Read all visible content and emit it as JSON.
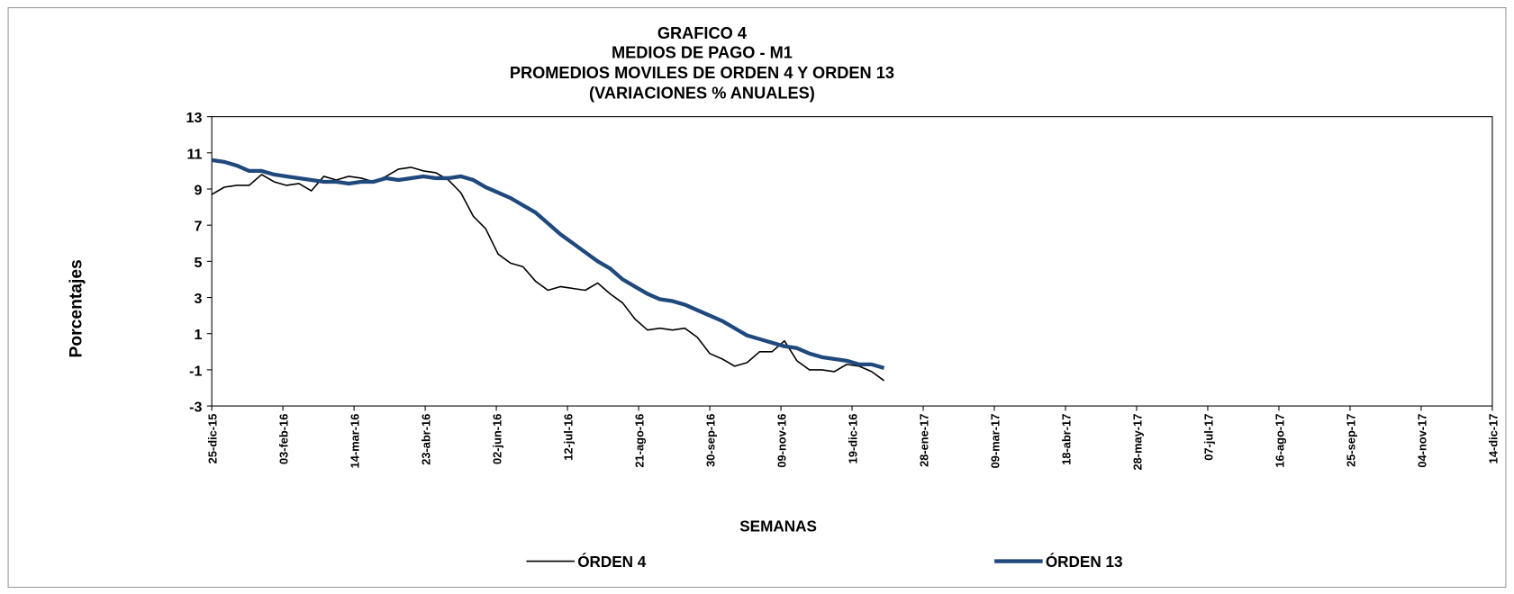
{
  "chart_data": {
    "type": "line",
    "title": [
      "GRAFICO 4",
      "MEDIOS DE PAGO - M1",
      "PROMEDIOS MOVILES DE ORDEN 4 Y ORDEN 13",
      "(VARIACIONES % ANUALES)"
    ],
    "xlabel": "SEMANAS",
    "ylabel": "Porcentajes",
    "x": [
      "2015-12-25",
      "2016-01-01",
      "2016-01-08",
      "2016-01-15",
      "2016-01-22",
      "2016-01-29",
      "2016-02-05",
      "2016-02-12",
      "2016-02-19",
      "2016-02-26",
      "2016-03-04",
      "2016-03-11",
      "2016-03-18",
      "2016-03-25",
      "2016-04-01",
      "2016-04-08",
      "2016-04-15",
      "2016-04-22",
      "2016-04-29",
      "2016-05-06",
      "2016-05-13",
      "2016-05-20",
      "2016-05-27",
      "2016-06-03",
      "2016-06-10",
      "2016-06-17",
      "2016-06-24",
      "2016-07-01",
      "2016-07-08",
      "2016-07-15",
      "2016-07-22",
      "2016-07-29",
      "2016-08-05",
      "2016-08-12",
      "2016-08-19",
      "2016-08-26",
      "2016-09-02",
      "2016-09-09",
      "2016-09-16",
      "2016-09-23",
      "2016-09-30",
      "2016-10-07",
      "2016-10-14",
      "2016-10-21",
      "2016-10-28",
      "2016-11-04",
      "2016-11-11",
      "2016-11-18",
      "2016-11-25",
      "2016-12-02",
      "2016-12-09",
      "2016-12-16",
      "2016-12-23",
      "2016-12-30",
      "2017-01-06"
    ],
    "series": [
      {
        "name": "ÓRDEN 4",
        "color": "#000000",
        "values": [
          8.7,
          9.1,
          9.2,
          9.2,
          9.8,
          9.4,
          9.2,
          9.3,
          8.9,
          9.7,
          9.5,
          9.7,
          9.6,
          9.4,
          9.7,
          10.1,
          10.2,
          10.0,
          9.9,
          9.5,
          8.8,
          7.5,
          6.8,
          5.4,
          4.9,
          4.7,
          3.9,
          3.4,
          3.6,
          3.5,
          3.4,
          3.8,
          3.2,
          2.7,
          1.8,
          1.2,
          1.3,
          1.2,
          1.3,
          0.8,
          -0.1,
          -0.4,
          -0.8,
          -0.6,
          0.0,
          0.0,
          0.6,
          -0.5,
          -1.0,
          -1.0,
          -1.1,
          -0.7,
          -0.8,
          -1.1,
          -1.6
        ]
      },
      {
        "name": "ÓRDEN 13",
        "color": "#1f497d",
        "values": [
          10.6,
          10.5,
          10.3,
          10.0,
          10.0,
          9.8,
          9.7,
          9.6,
          9.5,
          9.4,
          9.4,
          9.3,
          9.4,
          9.4,
          9.6,
          9.5,
          9.6,
          9.7,
          9.6,
          9.6,
          9.7,
          9.5,
          9.1,
          8.8,
          8.5,
          8.1,
          7.7,
          7.1,
          6.5,
          6.0,
          5.5,
          5.0,
          4.6,
          4.0,
          3.6,
          3.2,
          2.9,
          2.8,
          2.6,
          2.3,
          2.0,
          1.7,
          1.3,
          0.9,
          0.7,
          0.5,
          0.3,
          0.2,
          -0.1,
          -0.3,
          -0.4,
          -0.5,
          -0.7,
          -0.7,
          -0.9
        ]
      }
    ],
    "xlim": [
      "2015-12-25",
      "2017-12-14"
    ],
    "xticks": [
      {
        "value": "2015-12-25",
        "label": "25-dic-15"
      },
      {
        "value": "2016-02-03",
        "label": "03-feb-16"
      },
      {
        "value": "2016-03-14",
        "label": "14-mar-16"
      },
      {
        "value": "2016-04-23",
        "label": "23-abr-16"
      },
      {
        "value": "2016-06-02",
        "label": "02-jun-16"
      },
      {
        "value": "2016-07-12",
        "label": "12-jul-16"
      },
      {
        "value": "2016-08-21",
        "label": "21-ago-16"
      },
      {
        "value": "2016-09-30",
        "label": "30-sep-16"
      },
      {
        "value": "2016-11-09",
        "label": "09-nov-16"
      },
      {
        "value": "2016-12-19",
        "label": "19-dic-16"
      },
      {
        "value": "2017-01-28",
        "label": "28-ene-17"
      },
      {
        "value": "2017-03-09",
        "label": "09-mar-17"
      },
      {
        "value": "2017-04-18",
        "label": "18-abr-17"
      },
      {
        "value": "2017-05-28",
        "label": "28-may-17"
      },
      {
        "value": "2017-07-07",
        "label": "07-jul-17"
      },
      {
        "value": "2017-08-16",
        "label": "16-ago-17"
      },
      {
        "value": "2017-09-25",
        "label": "25-sep-17"
      },
      {
        "value": "2017-11-04",
        "label": "04-nov-17"
      },
      {
        "value": "2017-12-14",
        "label": "14-dic-17"
      }
    ],
    "ylim": [
      -3,
      13
    ],
    "yticks": [
      -3,
      -1,
      1,
      3,
      5,
      7,
      9,
      11,
      13
    ],
    "grid": false,
    "legend": "bottom"
  }
}
